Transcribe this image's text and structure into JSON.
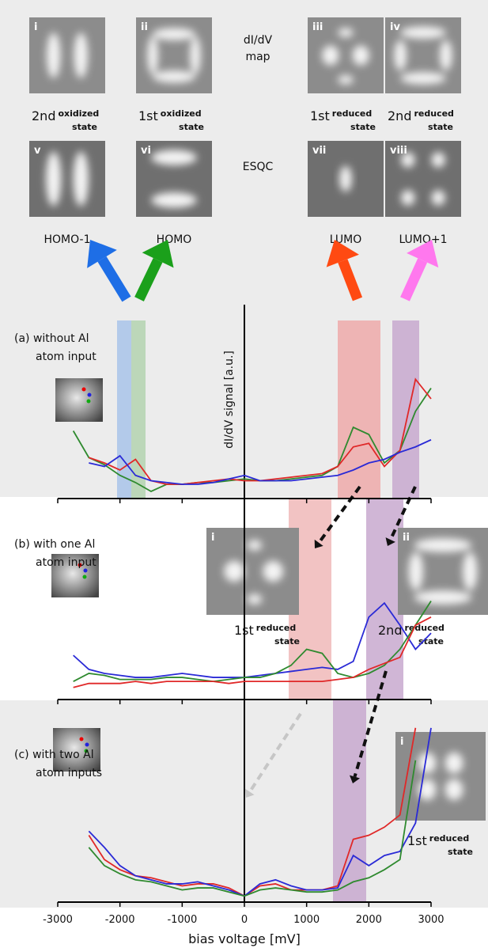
{
  "figure": {
    "top_images": [
      {
        "numeral": "i",
        "caption": {
          "main": "2nd",
          "sup": "oxidized",
          "sub": "state"
        }
      },
      {
        "numeral": "ii",
        "caption": {
          "main": "1st",
          "sup": "oxidized",
          "sub": "state"
        }
      },
      {
        "numeral": "iii",
        "caption": {
          "main": "1st",
          "sup": "reduced",
          "sub": "state"
        }
      },
      {
        "numeral": "iv",
        "caption": {
          "main": "2nd",
          "sup": "reduced",
          "sub": "state"
        }
      }
    ],
    "map_label": [
      "dI/dV",
      "map"
    ],
    "calc_images": [
      {
        "numeral": "v",
        "caption": "HOMO-1"
      },
      {
        "numeral": "vi",
        "caption": "HOMO"
      },
      {
        "numeral": "vii",
        "caption": "LUMO"
      },
      {
        "numeral": "viii",
        "caption": "LUMO+1"
      }
    ],
    "calc_label": "ESQC",
    "insets_b": [
      {
        "numeral": "i",
        "caption": {
          "main": "1st",
          "sup": "reduced",
          "sub": "state"
        }
      },
      {
        "numeral": "ii",
        "caption": {
          "main": "2nd",
          "sup": "reduced",
          "sub": "state"
        }
      }
    ],
    "insets_c": [
      {
        "numeral": "i",
        "caption": {
          "main": "1st",
          "sup": "reduced",
          "sub": "state"
        }
      }
    ]
  },
  "chart_data": {
    "type": "line",
    "xlabel": "bias voltage [mV]",
    "ylabel": "dI/dV signal [a.u.]",
    "xlim": [
      -3000,
      3000
    ],
    "xticks": [
      -3000,
      -2000,
      -1000,
      0,
      1000,
      2000,
      3000
    ],
    "x": [
      -2750,
      -2500,
      -2250,
      -2000,
      -1750,
      -1500,
      -1250,
      -1000,
      -750,
      -500,
      -250,
      0,
      250,
      500,
      750,
      1000,
      1250,
      1500,
      1750,
      2000,
      2250,
      2500,
      2750,
      3000
    ],
    "panels": [
      {
        "label": [
          "(a) without Al",
          "atom input"
        ],
        "ylim": [
          0,
          100
        ],
        "series": [
          {
            "color": "#2f8a2f",
            "values": [
              38,
              23,
              19,
              13,
              9,
              4,
              8,
              8,
              9,
              9,
              10,
              11,
              10,
              10,
              11,
              12,
              13,
              18,
              40,
              36,
              20,
              27,
              49,
              62
            ]
          },
          {
            "color": "#e02828",
            "values": [
              null,
              23,
              20,
              16,
              22,
              10,
              8,
              8,
              9,
              10,
              11,
              10,
              10,
              11,
              12,
              13,
              14,
              18,
              29,
              31,
              18,
              27,
              67,
              56
            ]
          },
          {
            "color": "#2a2ad6",
            "values": [
              null,
              20,
              18,
              24,
              13,
              10,
              9,
              8,
              8,
              9,
              11,
              13,
              10,
              10,
              10,
              11,
              12,
              13,
              16,
              20,
              22,
              26,
              29,
              33
            ]
          }
        ]
      },
      {
        "label": [
          "(b) with one Al",
          "atom input"
        ],
        "ylim": [
          0,
          100
        ],
        "series": [
          {
            "color": "#2a2ad6",
            "values": [
              22,
              15,
              13,
              12,
              11,
              11,
              12,
              13,
              12,
              11,
              11,
              11,
              12,
              13,
              14,
              15,
              16,
              15,
              19,
              41,
              48,
              37,
              25,
              33
            ]
          },
          {
            "color": "#2f8a2f",
            "values": [
              9,
              13,
              12,
              10,
              10,
              10,
              11,
              11,
              10,
              9,
              10,
              11,
              11,
              13,
              17,
              25,
              23,
              13,
              11,
              13,
              17,
              25,
              37,
              49
            ]
          },
          {
            "color": "#e02828",
            "values": [
              6,
              8,
              8,
              8,
              9,
              8,
              9,
              9,
              9,
              9,
              8,
              9,
              9,
              9,
              9,
              9,
              9,
              10,
              11,
              15,
              18,
              21,
              37,
              41
            ]
          }
        ]
      },
      {
        "label": [
          "(c) with two Al",
          "atom inputs"
        ],
        "ylim": [
          0,
          100
        ],
        "series": [
          {
            "color": "#e02828",
            "values": [
              null,
              33,
              21,
              16,
              13,
              12,
              10,
              8,
              9,
              9,
              7,
              3,
              8,
              9,
              6,
              6,
              6,
              8,
              31,
              33,
              37,
              43,
              86,
              null
            ]
          },
          {
            "color": "#2a2ad6",
            "values": [
              null,
              35,
              27,
              18,
              13,
              11,
              9,
              9,
              10,
              8,
              6,
              3,
              9,
              11,
              8,
              6,
              6,
              7,
              23,
              18,
              23,
              25,
              39,
              86
            ]
          },
          {
            "color": "#2f8a2f",
            "values": [
              null,
              27,
              18,
              14,
              11,
              10,
              8,
              6,
              7,
              7,
              5,
              3,
              6,
              7,
              6,
              5,
              5,
              6,
              10,
              12,
              16,
              21,
              70,
              null
            ]
          }
        ]
      }
    ]
  }
}
